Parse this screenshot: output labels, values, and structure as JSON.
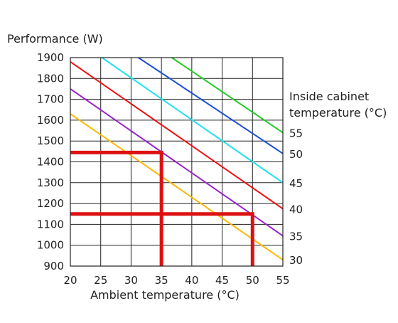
{
  "chart_data": {
    "type": "line",
    "ylabel": "Performance (W)",
    "xlabel": "Ambient temperature (°C)",
    "legend_title": [
      "Inside cabinet",
      "temperature (°C)"
    ],
    "legend_placement": "right",
    "grid": true,
    "xlim": [
      20,
      55
    ],
    "ylim": [
      900,
      1900
    ],
    "x_ticks": [
      "20",
      "25",
      "30",
      "35",
      "40",
      "45",
      "50",
      "55"
    ],
    "y_ticks": [
      "900",
      "1000",
      "1100",
      "1200",
      "1300",
      "1400",
      "1500",
      "1600",
      "1700",
      "1800",
      "1900"
    ],
    "series": [
      {
        "name": "55",
        "color": "#22cc22",
        "points": [
          [
            36.7,
            1900
          ],
          [
            55,
            1540
          ]
        ]
      },
      {
        "name": "50",
        "color": "#1a4fd6",
        "points": [
          [
            31.2,
            1900
          ],
          [
            55,
            1440
          ]
        ]
      },
      {
        "name": "45",
        "color": "#22e0f0",
        "points": [
          [
            25.2,
            1900
          ],
          [
            55,
            1300
          ]
        ]
      },
      {
        "name": "40",
        "color": "#ee1111",
        "points": [
          [
            20,
            1880
          ],
          [
            55,
            1175
          ]
        ]
      },
      {
        "name": "35",
        "color": "#9a22c8",
        "points": [
          [
            20,
            1750
          ],
          [
            55,
            1045
          ]
        ]
      },
      {
        "name": "30",
        "color": "#ffb800",
        "points": [
          [
            20,
            1630
          ],
          [
            55,
            930
          ]
        ]
      }
    ],
    "annotations": [
      {
        "color": "#dd1111",
        "points": [
          [
            20,
            1445
          ],
          [
            35,
            1445
          ],
          [
            35,
            900
          ]
        ]
      },
      {
        "color": "#dd1111",
        "points": [
          [
            20,
            1150
          ],
          [
            50,
            1150
          ],
          [
            50,
            900
          ]
        ]
      }
    ]
  }
}
